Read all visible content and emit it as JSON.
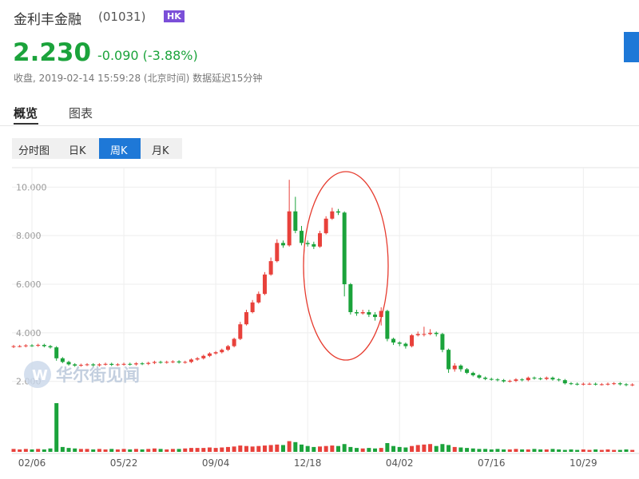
{
  "header": {
    "title": "金利丰金融",
    "code": "(01031)",
    "market": "HK",
    "price": "2.230",
    "change": "-0.090 (-3.88%)",
    "status": "收盘, 2019-02-14 15:59:28 (北京时间)",
    "delay": "数据延迟15分钟"
  },
  "tabs": [
    "概览",
    "图表"
  ],
  "periods": [
    "分时图",
    "日K",
    "周K",
    "月K"
  ],
  "watermark": "华尔街见闻",
  "chart_data": {
    "type": "candlestick",
    "categories": [
      null,
      null,
      null,
      "02/06",
      null,
      null,
      null,
      null,
      null,
      null,
      null,
      null,
      null,
      null,
      null,
      null,
      null,
      null,
      "05/22",
      null,
      null,
      null,
      null,
      null,
      null,
      null,
      null,
      null,
      null,
      null,
      null,
      null,
      null,
      "09/04",
      null,
      null,
      null,
      null,
      null,
      null,
      null,
      null,
      null,
      null,
      null,
      null,
      null,
      null,
      "12/18",
      null,
      null,
      null,
      null,
      null,
      null,
      null,
      null,
      null,
      null,
      null,
      null,
      null,
      null,
      "04/02",
      null,
      null,
      null,
      null,
      null,
      null,
      null,
      null,
      null,
      null,
      null,
      null,
      null,
      null,
      "07/16",
      null,
      null,
      null,
      null,
      null,
      null,
      null,
      null,
      null,
      null,
      null,
      null,
      null,
      null,
      "10/29",
      null,
      null,
      null,
      null,
      null,
      null,
      null,
      null
    ],
    "open": [
      3.42,
      3.45,
      3.45,
      3.48,
      3.47,
      3.5,
      3.45,
      3.4,
      2.95,
      2.8,
      2.7,
      2.65,
      2.68,
      2.7,
      2.66,
      2.7,
      2.72,
      2.68,
      2.7,
      2.72,
      2.7,
      2.74,
      2.72,
      2.76,
      2.8,
      2.78,
      2.8,
      2.82,
      2.78,
      2.8,
      2.9,
      2.95,
      3.05,
      3.15,
      3.2,
      3.3,
      3.45,
      3.75,
      4.35,
      4.85,
      5.25,
      5.6,
      6.4,
      6.95,
      7.7,
      7.6,
      9.0,
      8.2,
      7.7,
      7.65,
      7.55,
      8.1,
      8.7,
      9.0,
      8.95,
      6.0,
      4.85,
      4.8,
      4.85,
      4.75,
      4.65,
      4.9,
      3.75,
      3.6,
      3.55,
      3.45,
      3.9,
      3.95,
      3.95,
      4.0,
      3.95,
      3.3,
      2.5,
      2.65,
      2.5,
      2.35,
      2.25,
      2.15,
      2.1,
      2.08,
      2.05,
      2.0,
      2.02,
      2.08,
      2.05,
      2.15,
      2.12,
      2.1,
      2.15,
      2.08,
      2.05,
      1.92,
      1.9,
      1.88,
      1.9,
      1.9,
      1.88,
      1.88,
      1.9,
      1.92,
      1.88,
      1.85
    ],
    "high": [
      3.5,
      3.5,
      3.53,
      3.53,
      3.55,
      3.55,
      3.5,
      3.45,
      3.0,
      2.85,
      2.75,
      2.73,
      2.75,
      2.75,
      2.75,
      2.77,
      2.77,
      2.75,
      2.77,
      2.77,
      2.79,
      2.79,
      2.81,
      2.85,
      2.85,
      2.85,
      2.87,
      2.87,
      2.85,
      2.95,
      3.0,
      3.1,
      3.2,
      3.25,
      3.35,
      3.5,
      3.8,
      4.45,
      4.95,
      5.35,
      5.7,
      6.5,
      7.1,
      7.85,
      7.8,
      10.3,
      9.6,
      8.4,
      7.8,
      7.75,
      8.2,
      8.8,
      9.15,
      9.1,
      9.0,
      6.05,
      4.95,
      4.95,
      4.95,
      4.85,
      5.05,
      4.95,
      3.8,
      3.65,
      3.6,
      3.95,
      4.05,
      4.25,
      4.15,
      4.05,
      4.0,
      3.35,
      2.75,
      2.7,
      2.55,
      2.4,
      2.3,
      2.2,
      2.15,
      2.13,
      2.1,
      2.07,
      2.13,
      2.13,
      2.2,
      2.2,
      2.17,
      2.2,
      2.2,
      2.13,
      2.1,
      1.97,
      1.95,
      1.95,
      1.95,
      1.95,
      1.93,
      1.95,
      1.97,
      1.97,
      1.93,
      1.92
    ],
    "low": [
      3.37,
      3.4,
      3.4,
      3.42,
      3.42,
      3.4,
      3.35,
      2.85,
      2.75,
      2.65,
      2.6,
      2.6,
      2.63,
      2.61,
      2.61,
      2.65,
      2.63,
      2.63,
      2.65,
      2.65,
      2.65,
      2.67,
      2.67,
      2.71,
      2.73,
      2.73,
      2.75,
      2.73,
      2.73,
      2.75,
      2.85,
      2.9,
      3.0,
      3.1,
      3.15,
      3.25,
      3.4,
      3.7,
      4.3,
      4.8,
      5.2,
      5.55,
      6.35,
      6.9,
      7.5,
      7.55,
      8.1,
      7.6,
      7.55,
      7.45,
      7.5,
      8.05,
      8.65,
      8.85,
      5.5,
      4.75,
      4.7,
      4.75,
      4.65,
      4.5,
      4.3,
      3.65,
      3.5,
      3.45,
      3.35,
      3.4,
      3.85,
      3.85,
      3.9,
      3.85,
      3.2,
      2.35,
      2.4,
      2.4,
      2.3,
      2.2,
      2.1,
      2.05,
      2.03,
      2.0,
      1.95,
      1.95,
      1.97,
      2.0,
      2.0,
      2.07,
      2.05,
      2.05,
      2.03,
      2.0,
      1.87,
      1.85,
      1.83,
      1.83,
      1.85,
      1.83,
      1.83,
      1.83,
      1.85,
      1.83,
      1.8,
      1.8
    ],
    "close": [
      3.45,
      3.45,
      3.48,
      3.47,
      3.5,
      3.45,
      3.4,
      2.95,
      2.8,
      2.7,
      2.65,
      2.68,
      2.7,
      2.66,
      2.7,
      2.72,
      2.68,
      2.7,
      2.72,
      2.7,
      2.74,
      2.72,
      2.76,
      2.8,
      2.78,
      2.8,
      2.82,
      2.78,
      2.8,
      2.9,
      2.95,
      3.05,
      3.15,
      3.2,
      3.3,
      3.45,
      3.75,
      4.35,
      4.85,
      5.25,
      5.6,
      6.4,
      6.95,
      7.7,
      7.6,
      9.0,
      8.2,
      7.7,
      7.65,
      7.55,
      8.1,
      8.7,
      9.0,
      8.95,
      6.0,
      4.85,
      4.8,
      4.85,
      4.75,
      4.65,
      4.9,
      3.75,
      3.6,
      3.55,
      3.45,
      3.9,
      3.95,
      3.95,
      4.0,
      3.95,
      3.3,
      2.5,
      2.65,
      2.5,
      2.35,
      2.25,
      2.15,
      2.1,
      2.08,
      2.05,
      2.0,
      2.02,
      2.08,
      2.05,
      2.15,
      2.12,
      2.1,
      2.15,
      2.08,
      2.05,
      1.92,
      1.9,
      1.88,
      1.9,
      1.9,
      1.88,
      1.88,
      1.9,
      1.92,
      1.88,
      1.85,
      1.87
    ],
    "volume": [
      6,
      5,
      6,
      5,
      6,
      5,
      7,
      100,
      10,
      8,
      7,
      6,
      6,
      5,
      6,
      5,
      6,
      5,
      6,
      5,
      6,
      5,
      6,
      7,
      6,
      5,
      6,
      6,
      7,
      8,
      8,
      8,
      9,
      8,
      9,
      10,
      11,
      13,
      12,
      11,
      12,
      13,
      14,
      15,
      14,
      22,
      20,
      15,
      12,
      10,
      11,
      12,
      13,
      12,
      16,
      10,
      8,
      7,
      8,
      7,
      8,
      18,
      12,
      10,
      9,
      12,
      14,
      15,
      16,
      12,
      16,
      14,
      10,
      9,
      8,
      7,
      6,
      6,
      5,
      6,
      5,
      5,
      6,
      5,
      5,
      6,
      5,
      5,
      6,
      5,
      4,
      5,
      4,
      5,
      4,
      5,
      4,
      5,
      4,
      4,
      5,
      4
    ],
    "volume_ylim": [
      0,
      100
    ],
    "ylim": [
      1.3,
      10.8
    ],
    "yticks": [
      {
        "value": 2,
        "label": "2.000"
      },
      {
        "value": 4,
        "label": "4.000"
      },
      {
        "value": 6,
        "label": "6.000"
      },
      {
        "value": 8,
        "label": "8.000"
      },
      {
        "value": 10,
        "label": "10.000"
      }
    ],
    "up_color": "#e8413b",
    "down_color": "#1ba33b",
    "grid": true
  }
}
